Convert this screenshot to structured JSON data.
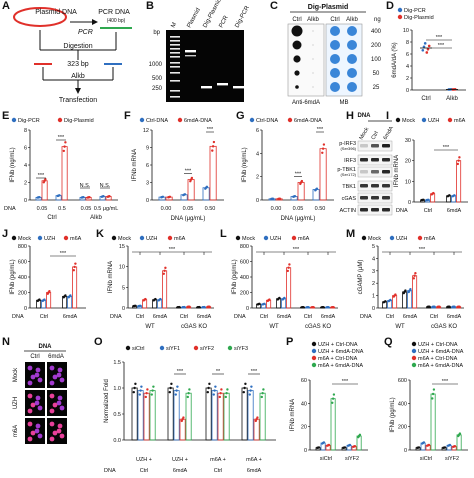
{
  "panels": [
    "A",
    "B",
    "C",
    "D",
    "E",
    "F",
    "G",
    "H",
    "I",
    "J",
    "K",
    "L",
    "M",
    "N",
    "O",
    "P",
    "Q"
  ],
  "panel_A": {
    "plasmid_label": "Plasmid DNA",
    "pcr_label": "PCR",
    "pcr_dna_label": "PCR DNA",
    "pcr_dna_size": "(400 bp)",
    "digestion_label": "Digestion",
    "fragment_size": "323 bp",
    "alkb_label": "Alkb",
    "transfection_label": "Transfection"
  },
  "panel_B": {
    "lanes": [
      "M",
      "Plasmid",
      "Dig-Plasmid",
      "PCR",
      "Dig-PCR"
    ],
    "unit": "bp",
    "markers": [
      "1000",
      "500",
      "250"
    ]
  },
  "panel_C": {
    "title": "Dig-Plasmid",
    "cols": [
      "Ctrl",
      "Alkb",
      "Ctrl",
      "Alkb"
    ],
    "ng_label": "ng",
    "ng_values": [
      "400",
      "200",
      "100",
      "50",
      "25"
    ],
    "left_caption": "Anti-6mdA",
    "right_caption": "MB"
  },
  "chart_data": [
    {
      "panel": "D",
      "type": "scatter",
      "legend": [
        "Dig-PCR",
        "Dig-Plasmid"
      ],
      "ylabel": "6mdA/dA (%)",
      "ylim": [
        0,
        10
      ],
      "yticks": [
        "0",
        "2",
        "4",
        "6",
        "8",
        "10"
      ],
      "categories": [
        "Ctrl",
        "Alkb"
      ],
      "series": [
        {
          "name": "Dig-PCR",
          "values": [
            7.2,
            0.1
          ]
        },
        {
          "name": "Dig-Plasmid",
          "values": [
            6.8,
            0.1
          ]
        }
      ],
      "significance": [
        "***",
        "***"
      ]
    },
    {
      "panel": "E",
      "type": "bar",
      "legend": [
        "Dig-PCR",
        "Dig-Plasmid"
      ],
      "ylabel": "IFNb (ng/mL)",
      "ylim": [
        0,
        8
      ],
      "yticks": [
        "0",
        "2",
        "4",
        "6",
        "8"
      ],
      "x_prefix": "DNA",
      "x_ticks": [
        "0.05",
        "0.5",
        "0.05",
        "0.5 μg/mL"
      ],
      "groups": [
        "Ctrl",
        "Alkb"
      ],
      "series": [
        {
          "name": "Dig-PCR",
          "values": [
            0.3,
            0.5,
            0.3,
            0.4
          ]
        },
        {
          "name": "Dig-Plasmid",
          "values": [
            2.2,
            6.1,
            0.3,
            0.4
          ]
        }
      ],
      "significance": [
        "***",
        "***",
        "N.S.",
        "N.S."
      ]
    },
    {
      "panel": "F",
      "type": "bar",
      "legend": [
        "Ctrl-DNA",
        "6mdA-DNA"
      ],
      "ylabel": "IFNb mRNA",
      "ylim": [
        0,
        12
      ],
      "yticks": [
        "0",
        "3",
        "6",
        "9",
        "12"
      ],
      "xlabel": "DNA (μg/mL)",
      "x_ticks": [
        "0.00",
        "0.05",
        "0.50"
      ],
      "series": [
        {
          "name": "Ctrl-DNA",
          "values": [
            0.5,
            0.9,
            2.1
          ]
        },
        {
          "name": "6mdA-DNA",
          "values": [
            0.5,
            3.5,
            9.2
          ]
        }
      ],
      "significance": [
        "***",
        "***"
      ]
    },
    {
      "panel": "G",
      "type": "bar",
      "legend": [
        "Ctrl-DNA",
        "6mdA-DNA"
      ],
      "ylabel": "IFNb (ng/mL)",
      "ylim": [
        0,
        6
      ],
      "yticks": [
        "0",
        "2",
        "4",
        "6"
      ],
      "xlabel": "DNA (μg/mL)",
      "x_ticks": [
        "0.00",
        "0.05",
        "0.50"
      ],
      "series": [
        {
          "name": "Ctrl-DNA",
          "values": [
            0.1,
            0.3,
            0.9
          ]
        },
        {
          "name": "6mdA-DNA",
          "values": [
            0.1,
            1.5,
            4.4
          ]
        }
      ],
      "significance": [
        "***",
        "***"
      ]
    },
    {
      "panel": "I",
      "type": "bar",
      "legend": [
        "Mock",
        "UZH",
        "m6A"
      ],
      "ylabel": "IFNb mRNA",
      "ylim": [
        0,
        30
      ],
      "yticks": [
        "0",
        "10",
        "20",
        "30"
      ],
      "x_prefix": "DNA",
      "x_ticks": [
        "Ctrl",
        "6mdA"
      ],
      "series": [
        {
          "name": "Mock",
          "values": [
            1,
            3
          ]
        },
        {
          "name": "UZH",
          "values": [
            1,
            3
          ]
        },
        {
          "name": "m6A",
          "values": [
            4,
            20
          ]
        }
      ],
      "significance": [
        "***"
      ]
    },
    {
      "panel": "J",
      "type": "bar",
      "legend": [
        "Mock",
        "UZH",
        "m6A"
      ],
      "ylabel": "IFNb (pg/mL)",
      "ylim": [
        0,
        800
      ],
      "yticks": [
        "0",
        "200",
        "400",
        "600",
        "800"
      ],
      "x_prefix": "DNA",
      "x_ticks": [
        "Ctrl",
        "6mdA"
      ],
      "series": [
        {
          "name": "Mock",
          "values": [
            100,
            150
          ]
        },
        {
          "name": "UZH",
          "values": [
            100,
            150
          ]
        },
        {
          "name": "m6A",
          "values": [
            200,
            530
          ]
        }
      ],
      "significance": [
        "***"
      ]
    },
    {
      "panel": "K",
      "type": "bar",
      "legend": [
        "Mock",
        "UZH",
        "m6A"
      ],
      "ylabel": "IFNb mRNA",
      "ylim": [
        0,
        15
      ],
      "yticks": [
        "0",
        "5",
        "10",
        "15"
      ],
      "x_prefix": "DNA",
      "x_ticks": [
        "Ctrl",
        "6mdA",
        "Ctrl",
        "6mdA"
      ],
      "groups": [
        "WT",
        "cGAS KO"
      ],
      "series": [
        {
          "name": "Mock",
          "values": [
            0.5,
            2,
            0.2,
            0.2
          ]
        },
        {
          "name": "UZH",
          "values": [
            0.5,
            2,
            0.2,
            0.2
          ]
        },
        {
          "name": "m6A",
          "values": [
            2,
            9,
            0.3,
            0.3
          ]
        }
      ],
      "significance": [
        "***"
      ]
    },
    {
      "panel": "L",
      "type": "bar",
      "legend": [
        "Mock",
        "UZH",
        "m6A"
      ],
      "ylabel": "IFNb (pg/mL)",
      "ylim": [
        0,
        800
      ],
      "yticks": [
        "0",
        "200",
        "400",
        "600",
        "800"
      ],
      "x_prefix": "DNA",
      "x_ticks": [
        "Ctrl",
        "6mdA",
        "Ctrl",
        "6mdA"
      ],
      "groups": [
        "WT",
        "cGAS KO"
      ],
      "series": [
        {
          "name": "Mock",
          "values": [
            50,
            120,
            10,
            10
          ]
        },
        {
          "name": "UZH",
          "values": [
            50,
            120,
            10,
            10
          ]
        },
        {
          "name": "m6A",
          "values": [
            100,
            520,
            10,
            10
          ]
        }
      ],
      "significance": [
        "***"
      ]
    },
    {
      "panel": "M",
      "type": "bar",
      "legend": [
        "Mock",
        "UZH",
        "m6A"
      ],
      "ylabel": "cGAMP (μM)",
      "ylim": [
        0,
        5
      ],
      "yticks": [
        "0",
        "1",
        "2",
        "3",
        "4",
        "5"
      ],
      "x_prefix": "DNA",
      "x_ticks": [
        "Ctrl",
        "6mdA",
        "Ctrl",
        "6mdA"
      ],
      "groups": [
        "WT",
        "cGAS KO"
      ],
      "series": [
        {
          "name": "Mock",
          "values": [
            0.5,
            1.3,
            0.1,
            0.1
          ]
        },
        {
          "name": "UZH",
          "values": [
            0.6,
            1.4,
            0.1,
            0.1
          ]
        },
        {
          "name": "m6A",
          "values": [
            1.0,
            2.6,
            0.1,
            0.1
          ]
        }
      ],
      "significance": [
        "***"
      ]
    },
    {
      "panel": "O",
      "type": "bar",
      "legend": [
        "siCtrl",
        "siYF1",
        "siYF2",
        "siYF3"
      ],
      "ylabel": "Normalized Fold",
      "ylim": [
        0,
        1.5
      ],
      "yticks": [
        "0.0",
        "0.5",
        "1.0",
        "1.5"
      ],
      "x_prefix": "DNA",
      "categories": [
        "UZH + Ctrl",
        "UZH + 6mdA",
        "m6A + Ctrl",
        "m6A + 6mdA"
      ],
      "series": [
        {
          "name": "siCtrl",
          "values": [
            1.0,
            1.0,
            1.0,
            1.0
          ]
        },
        {
          "name": "siYF1",
          "values": [
            0.95,
            0.95,
            0.95,
            0.95
          ]
        },
        {
          "name": "siYF2",
          "values": [
            0.9,
            0.4,
            0.9,
            0.4
          ]
        },
        {
          "name": "siYF3",
          "values": [
            0.95,
            0.9,
            0.9,
            0.9
          ]
        }
      ],
      "significance": [
        "***",
        "**",
        "***"
      ]
    },
    {
      "panel": "P",
      "type": "bar",
      "legend": [
        "UZH + Ctrl-DNA",
        "UZH + 6mdA-DNA",
        "m6A + Ctrl-DNA",
        "m6A + 6mdA-DNA"
      ],
      "ylabel": "IFNb mRNA",
      "ylim": [
        0,
        60
      ],
      "yticks": [
        "0",
        "20",
        "40",
        "60"
      ],
      "categories": [
        "siCtrl",
        "siYF2"
      ],
      "series": [
        {
          "name": "UZH + Ctrl-DNA",
          "values": [
            2,
            2
          ]
        },
        {
          "name": "UZH + 6mdA-DNA",
          "values": [
            6,
            4
          ]
        },
        {
          "name": "m6A + Ctrl-DNA",
          "values": [
            4,
            3
          ]
        },
        {
          "name": "m6A + 6mdA-DNA",
          "values": [
            44,
            12
          ]
        }
      ],
      "significance": [
        "***"
      ]
    },
    {
      "panel": "Q",
      "type": "bar",
      "legend": [
        "UZH + Ctrl-DNA",
        "UZH + 6mdA-DNA",
        "m6A + Ctrl-DNA",
        "m6A + 6mdA-DNA"
      ],
      "ylabel": "IFNb (pg/mL)",
      "ylim": [
        0,
        600
      ],
      "yticks": [
        "0",
        "200",
        "400",
        "600"
      ],
      "categories": [
        "siCtrl",
        "siYF2"
      ],
      "series": [
        {
          "name": "UZH + Ctrl-DNA",
          "values": [
            20,
            20
          ]
        },
        {
          "name": "UZH + 6mdA-DNA",
          "values": [
            60,
            40
          ]
        },
        {
          "name": "m6A + Ctrl-DNA",
          "values": [
            40,
            30
          ]
        },
        {
          "name": "m6A + 6mdA-DNA",
          "values": [
            480,
            130
          ]
        }
      ],
      "significance": [
        "***"
      ]
    }
  ],
  "panel_H": {
    "header": "DNA",
    "lanes": [
      "Mock",
      "Ctrl",
      "6mdA"
    ],
    "rows": [
      "p-IRF3 (Ser396)",
      "IRF3",
      "p-TBK1 (Ser172)",
      "TBK1",
      "cGAS",
      "ACTIN"
    ]
  },
  "panel_N": {
    "header": "DNA",
    "cols": [
      "Ctrl",
      "6mdA"
    ],
    "rows": [
      "Mock",
      "UZH",
      "m6A"
    ]
  },
  "colors": {
    "red": "#e0302a",
    "blue": "#2f6fc0",
    "black": "#111111",
    "green": "#2fa84f",
    "purple": "#8a3ab9",
    "pink": "#e8409a"
  }
}
